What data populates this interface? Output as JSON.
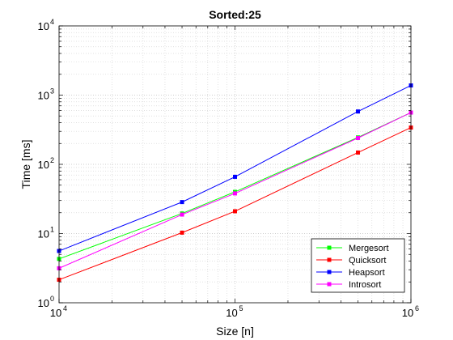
{
  "chart_data": {
    "type": "line",
    "title": "Sorted:25",
    "xlabel": "Size [n]",
    "ylabel": "Time [ms]",
    "x_scale": "log",
    "y_scale": "log",
    "xlim": [
      10000,
      1000000
    ],
    "ylim": [
      1,
      10000
    ],
    "grid": "on (major and minor, dotted)",
    "legend_location": "bottom-right",
    "x_ticks": [
      {
        "base": "10",
        "exp": "4",
        "value": 10000
      },
      {
        "base": "10",
        "exp": "5",
        "value": 100000
      },
      {
        "base": "10",
        "exp": "6",
        "value": 1000000
      }
    ],
    "y_ticks": [
      {
        "base": "10",
        "exp": "0",
        "value": 1
      },
      {
        "base": "10",
        "exp": "1",
        "value": 10
      },
      {
        "base": "10",
        "exp": "2",
        "value": 100
      },
      {
        "base": "10",
        "exp": "3",
        "value": 1000
      },
      {
        "base": "10",
        "exp": "4",
        "value": 10000
      }
    ],
    "x": [
      10000,
      50000,
      100000,
      500000,
      1000000
    ],
    "series": [
      {
        "name": "Mergesort",
        "color": "#00ff00",
        "values": [
          4.3,
          19.5,
          40,
          245,
          560
        ]
      },
      {
        "name": "Quicksort",
        "color": "#ff0000",
        "values": [
          2.15,
          10.3,
          21,
          148,
          340
        ]
      },
      {
        "name": "Heapsort",
        "color": "#0000ff",
        "values": [
          5.6,
          28.5,
          66,
          580,
          1380
        ]
      },
      {
        "name": "Introsort",
        "color": "#ff00ff",
        "values": [
          3.15,
          18.8,
          38,
          240,
          560
        ]
      }
    ]
  }
}
